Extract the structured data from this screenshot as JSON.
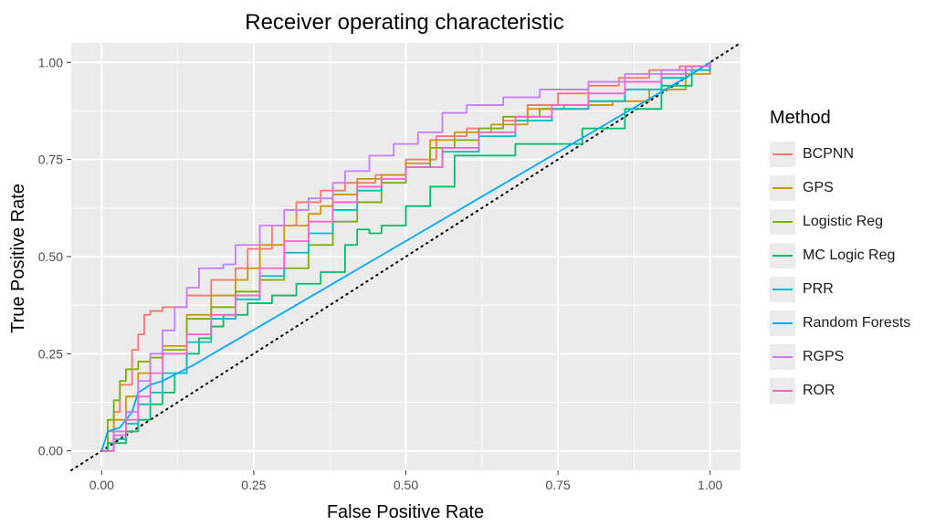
{
  "chart_data": {
    "type": "line",
    "title": "Receiver operating characteristic",
    "xlabel": "False Positive Rate",
    "ylabel": "True Positive Rate",
    "xlim": [
      -0.05,
      1.05
    ],
    "ylim": [
      -0.05,
      1.05
    ],
    "xticks": [
      "0.00",
      "0.25",
      "0.50",
      "0.75",
      "1.00"
    ],
    "yticks": [
      "0.00",
      "0.25",
      "0.50",
      "0.75",
      "1.00"
    ],
    "grid": true,
    "legend_title": "Method",
    "legend_position": "right",
    "reference_line": {
      "style": "dotted",
      "x": [
        -0.05,
        1.05
      ],
      "y": [
        -0.05,
        1.05
      ]
    },
    "series": [
      {
        "name": "BCPNN",
        "color": "#F8766D",
        "x": [
          0,
          0.01,
          0.02,
          0.03,
          0.05,
          0.06,
          0.07,
          0.08,
          0.1,
          0.14,
          0.18,
          0.22,
          0.24,
          0.28,
          0.32,
          0.36,
          0.4,
          0.45,
          0.5,
          0.55,
          0.6,
          0.66,
          0.7,
          0.75,
          0.8,
          0.85,
          0.9,
          0.95,
          1.0
        ],
        "y": [
          0,
          0.05,
          0.1,
          0.17,
          0.26,
          0.3,
          0.35,
          0.36,
          0.37,
          0.4,
          0.44,
          0.47,
          0.52,
          0.58,
          0.64,
          0.67,
          0.69,
          0.71,
          0.75,
          0.81,
          0.83,
          0.85,
          0.89,
          0.92,
          0.94,
          0.96,
          0.98,
          0.99,
          1.0
        ]
      },
      {
        "name": "GPS",
        "color": "#CD9600",
        "x": [
          0,
          0.02,
          0.04,
          0.06,
          0.08,
          0.1,
          0.14,
          0.18,
          0.22,
          0.24,
          0.26,
          0.3,
          0.34,
          0.36,
          0.38,
          0.42,
          0.46,
          0.5,
          0.54,
          0.58,
          0.64,
          0.7,
          0.76,
          0.84,
          0.9,
          0.96,
          1.0
        ],
        "y": [
          0,
          0.08,
          0.14,
          0.2,
          0.24,
          0.27,
          0.35,
          0.4,
          0.44,
          0.47,
          0.53,
          0.58,
          0.61,
          0.63,
          0.66,
          0.7,
          0.71,
          0.74,
          0.8,
          0.82,
          0.84,
          0.88,
          0.89,
          0.9,
          0.93,
          0.97,
          1.0
        ]
      },
      {
        "name": "Logistic Reg",
        "color": "#7CAE00",
        "x": [
          0,
          0.01,
          0.02,
          0.03,
          0.04,
          0.06,
          0.08,
          0.1,
          0.14,
          0.18,
          0.22,
          0.26,
          0.3,
          0.34,
          0.38,
          0.42,
          0.46,
          0.5,
          0.54,
          0.58,
          0.62,
          0.66,
          0.72,
          0.8,
          0.86,
          0.92,
          0.96,
          1.0
        ],
        "y": [
          0,
          0.08,
          0.13,
          0.18,
          0.21,
          0.23,
          0.24,
          0.26,
          0.34,
          0.37,
          0.41,
          0.44,
          0.47,
          0.53,
          0.59,
          0.64,
          0.69,
          0.73,
          0.78,
          0.8,
          0.83,
          0.86,
          0.88,
          0.9,
          0.93,
          0.96,
          0.99,
          1.0
        ]
      },
      {
        "name": "MC Logic Reg",
        "color": "#00BE67",
        "x": [
          0,
          0.01,
          0.02,
          0.04,
          0.06,
          0.08,
          0.1,
          0.12,
          0.14,
          0.16,
          0.18,
          0.2,
          0.24,
          0.28,
          0.32,
          0.36,
          0.4,
          0.42,
          0.44,
          0.46,
          0.5,
          0.54,
          0.58,
          0.68,
          0.79,
          0.86,
          0.92,
          0.97,
          1.0
        ],
        "y": [
          0,
          0.02,
          0.02,
          0.05,
          0.08,
          0.12,
          0.15,
          0.2,
          0.25,
          0.29,
          0.32,
          0.35,
          0.38,
          0.4,
          0.43,
          0.46,
          0.53,
          0.57,
          0.56,
          0.58,
          0.63,
          0.68,
          0.76,
          0.79,
          0.83,
          0.88,
          0.94,
          0.98,
          1.0
        ]
      },
      {
        "name": "PRR",
        "color": "#00BFC4",
        "x": [
          0,
          0.02,
          0.04,
          0.06,
          0.08,
          0.1,
          0.14,
          0.18,
          0.22,
          0.26,
          0.3,
          0.34,
          0.38,
          0.42,
          0.46,
          0.5,
          0.56,
          0.62,
          0.68,
          0.74,
          0.8,
          0.86,
          0.92,
          0.96,
          1.0
        ],
        "y": [
          0,
          0.03,
          0.07,
          0.12,
          0.15,
          0.2,
          0.28,
          0.34,
          0.39,
          0.45,
          0.51,
          0.56,
          0.62,
          0.67,
          0.7,
          0.73,
          0.77,
          0.81,
          0.85,
          0.88,
          0.9,
          0.93,
          0.96,
          0.98,
          1.0
        ]
      },
      {
        "name": "Random Forests",
        "color": "#00A9FF",
        "x": [
          0,
          0.01,
          0.03,
          0.05,
          0.06,
          0.08,
          0.1,
          0.15,
          0.97,
          1.0
        ],
        "y": [
          0,
          0.05,
          0.06,
          0.1,
          0.15,
          0.17,
          0.18,
          0.22,
          0.97,
          1.0
        ],
        "note": ""
      },
      {
        "name": "RGPS",
        "color": "#C77CFF",
        "x": [
          0,
          0.02,
          0.04,
          0.06,
          0.08,
          0.1,
          0.12,
          0.14,
          0.16,
          0.2,
          0.22,
          0.26,
          0.3,
          0.34,
          0.38,
          0.4,
          0.44,
          0.48,
          0.52,
          0.56,
          0.6,
          0.66,
          0.72,
          0.8,
          0.86,
          0.92,
          0.97,
          1.0
        ],
        "y": [
          0,
          0.05,
          0.1,
          0.18,
          0.25,
          0.31,
          0.37,
          0.42,
          0.47,
          0.48,
          0.53,
          0.58,
          0.62,
          0.65,
          0.69,
          0.72,
          0.76,
          0.79,
          0.82,
          0.87,
          0.89,
          0.91,
          0.93,
          0.95,
          0.97,
          0.98,
          0.99,
          1.0
        ]
      },
      {
        "name": "ROR",
        "color": "#FF61CC",
        "x": [
          0,
          0.02,
          0.04,
          0.06,
          0.08,
          0.1,
          0.14,
          0.18,
          0.22,
          0.26,
          0.3,
          0.34,
          0.38,
          0.42,
          0.46,
          0.5,
          0.56,
          0.62,
          0.68,
          0.74,
          0.8,
          0.86,
          0.92,
          0.96,
          1.0
        ],
        "y": [
          0,
          0.04,
          0.08,
          0.14,
          0.2,
          0.25,
          0.3,
          0.35,
          0.4,
          0.47,
          0.54,
          0.59,
          0.64,
          0.68,
          0.7,
          0.73,
          0.78,
          0.82,
          0.86,
          0.89,
          0.92,
          0.95,
          0.97,
          0.99,
          1.0
        ]
      }
    ]
  }
}
